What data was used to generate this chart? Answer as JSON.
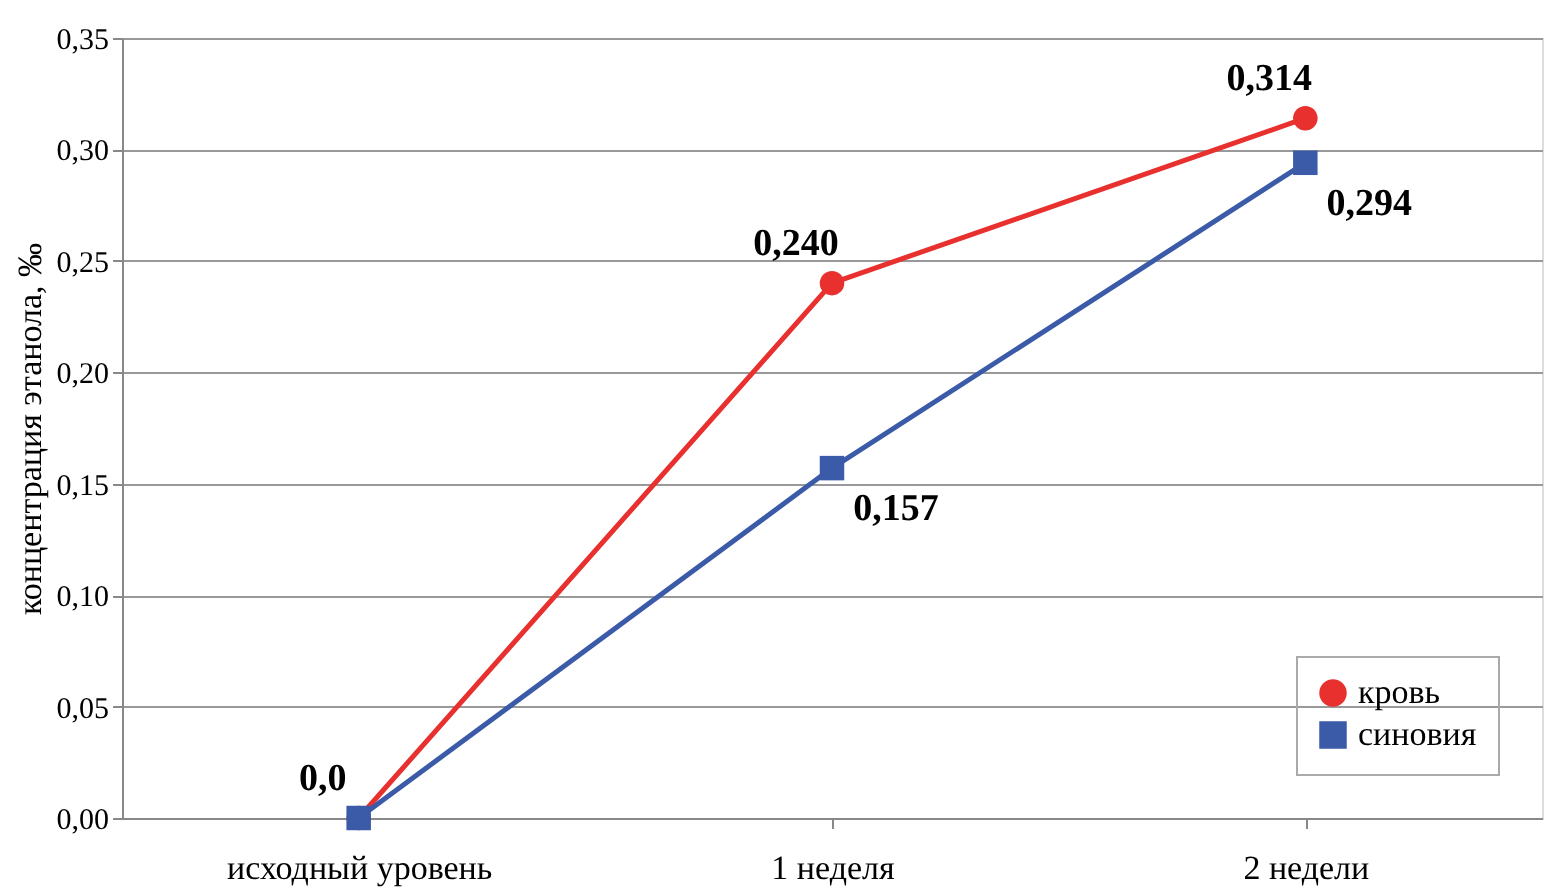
{
  "chart_data": {
    "type": "line",
    "ylabel": "концентрация этанола, ‰",
    "categories": [
      "исходный уровень",
      "1 неделя",
      "2 недели"
    ],
    "series": [
      {
        "name": "кровь",
        "color": "#e8312f",
        "marker": "circle",
        "values": [
          0.0,
          0.24,
          0.314
        ],
        "value_labels": [
          "0,0",
          "0,240",
          "0,314"
        ]
      },
      {
        "name": "синовия",
        "color": "#3b5ba8",
        "marker": "square",
        "values": [
          0.0,
          0.157,
          0.294
        ],
        "value_labels": [
          null,
          "0,157",
          "0,294"
        ]
      }
    ],
    "ylim": [
      0,
      0.35
    ],
    "yticks": [
      {
        "value": 0,
        "label": "0,00"
      },
      {
        "value": 0.05,
        "label": "0,05"
      },
      {
        "value": 0.1,
        "label": "0,10"
      },
      {
        "value": 0.15,
        "label": "0,15"
      },
      {
        "value": 0.2,
        "label": "0,20"
      },
      {
        "value": 0.25,
        "label": "0,25"
      },
      {
        "value": 0.3,
        "label": "0,30"
      },
      {
        "value": 0.35,
        "label": "0,35"
      }
    ],
    "grid": "y",
    "legend": "bottom right",
    "line_style": "solid"
  }
}
